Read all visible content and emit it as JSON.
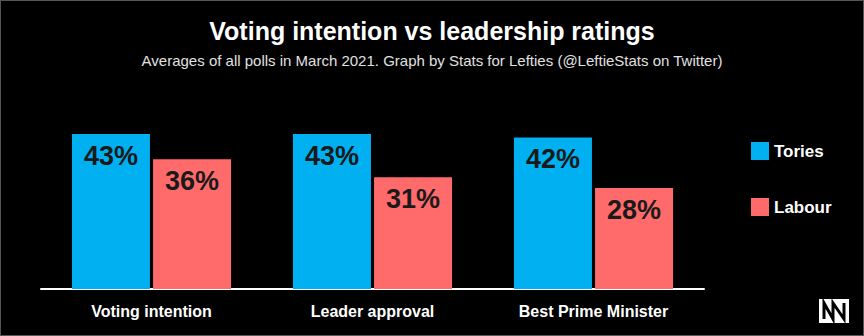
{
  "chart_data": {
    "type": "bar",
    "title": "Voting intention vs leadership ratings",
    "subtitle": "Averages of all polls in March 2021. Graph by Stats for Lefties (@LeftieStats on Twitter)",
    "categories": [
      "Voting intention",
      "Leader approval",
      "Best Prime Minister"
    ],
    "series": [
      {
        "name": "Tories",
        "color": "#00b0f0",
        "values": [
          43,
          43,
          42
        ],
        "value_labels": [
          "43%",
          "43%",
          "42%"
        ]
      },
      {
        "name": "Labour",
        "color": "#ff6b6b",
        "values": [
          36,
          31,
          28
        ],
        "value_labels": [
          "36%",
          "31%",
          "28%"
        ]
      }
    ],
    "ylim": [
      0,
      43
    ],
    "data_labels": true,
    "tick_labels": "x",
    "legend": "right",
    "grid": false
  }
}
